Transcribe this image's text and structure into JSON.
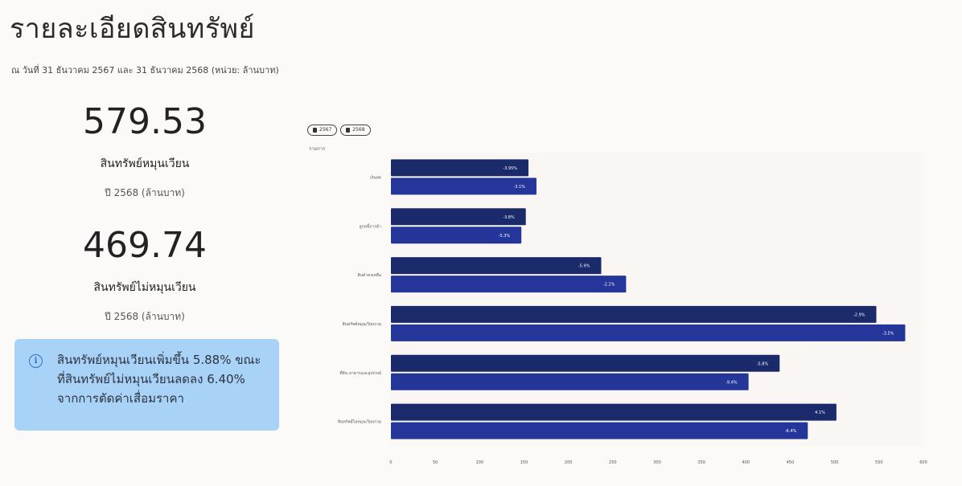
{
  "page": {
    "title": "รายละเอียดสินทรัพย์",
    "subtitle": "ณ วันที่ 31 ธันวาคม 2567 และ 31 ธันวาคม 2568 (หน่วย: ล้านบาท)"
  },
  "kpis": [
    {
      "value": "579.53",
      "label": "สินทรัพย์หมุนเวียน",
      "unit": "ปี 2568 (ล้านบาท)"
    },
    {
      "value": "469.74",
      "label": "สินทรัพย์ไม่หมุนเวียน",
      "unit": "ปี 2568 (ล้านบาท)"
    }
  ],
  "note": {
    "icon": "info-icon",
    "text": "สินทรัพย์หมุนเวียนเพิ่มขึ้น 5.88% ขณะที่สินทรัพย์ไม่หมุนเวียนลดลง 6.40% จากการตัดค่าเสื่อมราคา"
  },
  "colors": {
    "series_2567": "#1b2a6b",
    "series_2568": "#24369a",
    "note_bg": "#a9d2f7",
    "plot_bg": "#f9f6f4"
  },
  "chart_data": {
    "type": "bar",
    "orientation": "horizontal",
    "legend": [
      "2567",
      "2568"
    ],
    "legend_position": "top-left",
    "axis_title": "รายการ",
    "categories": [
      "เงินสด",
      "ลูกหนี้การค้า",
      "สินค้าคงเหลือ",
      "สินทรัพย์หมุนเวียนรวม",
      "ที่ดิน อาคารและอุปกรณ์",
      "สินทรัพย์ไม่หมุนเวียนรวม"
    ],
    "series": [
      {
        "name": "2567",
        "values": [
          155,
          152,
          237,
          547,
          438,
          502
        ],
        "labels": [
          "-3.95%",
          "-3.8%",
          "-5.9%",
          "-2.9%",
          "-5.8%",
          "4.1%"
        ]
      },
      {
        "name": "2568",
        "values": [
          164,
          147,
          265,
          579.53,
          403,
          469.74
        ],
        "labels": [
          "-3.1%",
          "-5.3%",
          "-2.2%",
          "-3.5%",
          "-9.4%",
          "-6.4%"
        ]
      }
    ],
    "xticks": [
      "0",
      "50",
      "100",
      "150",
      "200",
      "250",
      "300",
      "350",
      "400",
      "450",
      "500",
      "550",
      "600"
    ],
    "xlim": [
      0,
      600
    ],
    "grid": false
  }
}
